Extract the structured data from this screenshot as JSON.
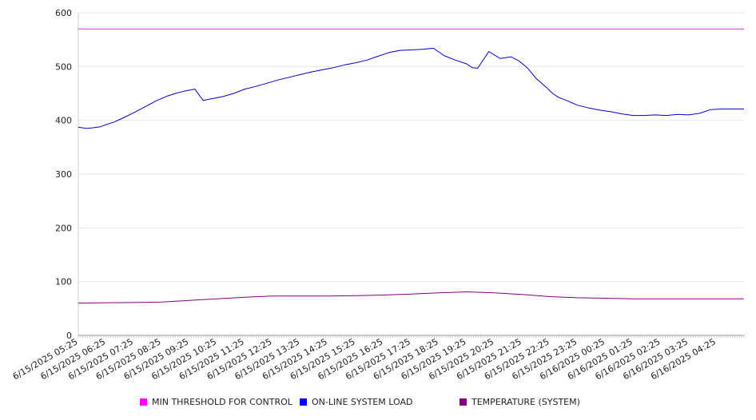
{
  "chart_data": {
    "type": "line",
    "title": "",
    "xlabel": "",
    "ylabel": "",
    "ylim": [
      0,
      600
    ],
    "yticks": [
      0,
      100,
      200,
      300,
      400,
      500,
      600
    ],
    "grid": true,
    "legend_position": "bottom",
    "x_tick_labels": [
      "6/15/2025 05:25",
      "6/15/2025 06:25",
      "6/15/2025 07:25",
      "6/15/2025 08:25",
      "6/15/2025 09:25",
      "6/15/2025 10:25",
      "6/15/2025 11:25",
      "6/15/2025 12:25",
      "6/15/2025 13:25",
      "6/15/2025 14:25",
      "6/15/2025 15:25",
      "6/15/2025 16:25",
      "6/15/2025 17:25",
      "6/15/2025 18:25",
      "6/15/2025 19:25",
      "6/15/2025 20:25",
      "6/15/2025 21:25",
      "6/15/2025 22:25",
      "6/15/2025 23:25",
      "6/16/2025 00:25",
      "6/16/2025 01:25",
      "6/16/2025 02:25",
      "6/16/2025 03:25",
      "6/16/2025 04:25"
    ],
    "x_range_hours": [
      0,
      24
    ],
    "series": [
      {
        "name": "MIN THRESHOLD FOR CONTROL",
        "color": "#cc33cc",
        "x_hours": [
          0,
          24
        ],
        "values": [
          570,
          570
        ]
      },
      {
        "name": "ON-LINE SYSTEM LOAD",
        "color": "#0000cc",
        "x_hours": [
          0,
          0.3,
          0.5,
          0.8,
          1.0,
          1.3,
          1.6,
          2.0,
          2.4,
          2.8,
          3.2,
          3.5,
          3.8,
          4.2,
          4.5,
          4.6,
          4.8,
          5.2,
          5.6,
          6.0,
          6.4,
          6.8,
          7.2,
          7.6,
          8.0,
          8.4,
          8.8,
          9.2,
          9.6,
          10.0,
          10.4,
          10.8,
          11.2,
          11.6,
          12.0,
          12.4,
          12.8,
          13.2,
          13.6,
          14.0,
          14.2,
          14.4,
          14.8,
          15.2,
          15.6,
          15.9,
          16.2,
          16.5,
          16.9,
          17.1,
          17.3,
          17.6,
          18.0,
          18.4,
          18.8,
          19.2,
          19.6,
          20.0,
          20.4,
          20.8,
          21.2,
          21.6,
          22.0,
          22.4,
          22.8,
          23.2,
          23.6,
          24.0
        ],
        "values": [
          387,
          385,
          386,
          388,
          392,
          397,
          404,
          414,
          425,
          436,
          445,
          450,
          454,
          458,
          437,
          438,
          440,
          444,
          450,
          458,
          463,
          469,
          475,
          480,
          485,
          490,
          494,
          498,
          503,
          507,
          512,
          519,
          526,
          530,
          531,
          532,
          534,
          520,
          512,
          505,
          498,
          497,
          528,
          515,
          518,
          510,
          497,
          478,
          460,
          450,
          443,
          437,
          428,
          423,
          419,
          416,
          412,
          409,
          409,
          410,
          409,
          411,
          410,
          413,
          420,
          421,
          421,
          421
        ]
      },
      {
        "name": "TEMPERATURE (SYSTEM)",
        "color": "#800080",
        "x_hours": [
          0,
          2,
          3,
          4,
          5,
          6,
          7,
          8,
          9,
          10,
          11,
          12,
          13,
          14,
          15,
          16,
          17,
          18,
          19,
          20,
          21,
          22,
          23,
          24
        ],
        "values": [
          60,
          61,
          62,
          65,
          68,
          71,
          73,
          73,
          73,
          74,
          75,
          77,
          79,
          81,
          79,
          76,
          72,
          70,
          69,
          68,
          68,
          68,
          68,
          68
        ]
      }
    ]
  }
}
